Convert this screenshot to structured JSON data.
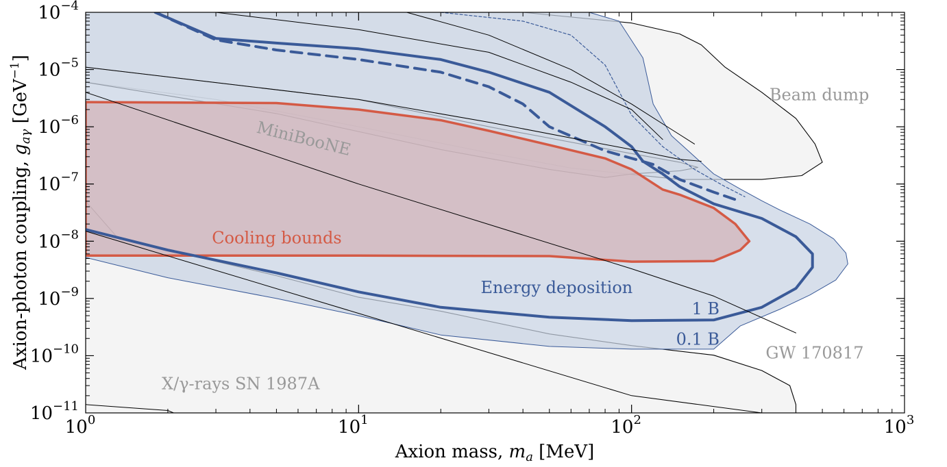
{
  "chart_data": {
    "type": "area",
    "title": "",
    "xlabel": "Axion mass, m_a [MeV]",
    "ylabel": "Axion-photon coupling, g_aγ [GeV⁻¹]",
    "xscale": "log",
    "yscale": "log",
    "xlim": [
      1,
      1000
    ],
    "ylim": [
      1e-11,
      0.0001
    ],
    "x_ticks": [
      {
        "value": 1,
        "base": "10",
        "exp": "0"
      },
      {
        "value": 10,
        "base": "10",
        "exp": "1"
      },
      {
        "value": 100,
        "base": "10",
        "exp": "2"
      },
      {
        "value": 1000,
        "base": "10",
        "exp": "3"
      }
    ],
    "y_ticks": [
      {
        "value": 1e-11,
        "base": "10",
        "exp": "−11"
      },
      {
        "value": 1e-10,
        "base": "10",
        "exp": "−10"
      },
      {
        "value": 1e-09,
        "base": "10",
        "exp": "−9"
      },
      {
        "value": 1e-08,
        "base": "10",
        "exp": "−8"
      },
      {
        "value": 1e-07,
        "base": "10",
        "exp": "−7"
      },
      {
        "value": 1e-06,
        "base": "10",
        "exp": "−6"
      },
      {
        "value": 1e-05,
        "base": "10",
        "exp": "−5"
      },
      {
        "value": 0.0001,
        "base": "10",
        "exp": "−4"
      }
    ],
    "grid": false,
    "colors": {
      "gray_fill": "#f0f0f0",
      "gray_dark_fill": "#c2c2c2",
      "blue_fill": "#c8d2e3",
      "blue_line": "#3a5a98",
      "red_fill": "#d3b3b7",
      "red_line": "#d45a45",
      "label_gray": "#999999"
    },
    "regions": [
      {
        "name": "Beam dump",
        "style": "gray",
        "points": [
          [
            1,
            0.0001
          ],
          [
            40,
            0.0001
          ],
          [
            100,
            6.5e-05
          ],
          [
            150,
            4.2e-05
          ],
          [
            180,
            2.7e-05
          ],
          [
            220,
            1.1e-05
          ],
          [
            300,
            4e-06
          ],
          [
            400,
            1.4e-06
          ],
          [
            470,
            5e-07
          ],
          [
            500,
            2.4e-07
          ],
          [
            420,
            1.4e-07
          ],
          [
            300,
            1.2e-07
          ],
          [
            150,
            1.2e-07
          ],
          [
            60,
            1.9e-07
          ],
          [
            30,
            3.5e-07
          ],
          [
            10,
            1e-06
          ],
          [
            3,
            3e-06
          ],
          [
            1,
            6e-06
          ]
        ]
      },
      {
        "name": "X/γ-rays SN 1987A",
        "style": "gray",
        "points": [
          [
            1,
            5e-08
          ],
          [
            1.3,
            1.2e-08
          ],
          [
            2,
            7e-09
          ],
          [
            5,
            2.5e-09
          ],
          [
            10,
            1.05e-09
          ],
          [
            20,
            6e-10
          ],
          [
            50,
            2.4e-10
          ],
          [
            100,
            1.5e-10
          ],
          [
            200,
            1.02e-10
          ],
          [
            300,
            5.5e-11
          ],
          [
            380,
            3e-11
          ],
          [
            400,
            1.4e-11
          ],
          [
            400,
            1e-11
          ],
          [
            1,
            1e-11
          ]
        ]
      },
      {
        "name": "MiniBooNE",
        "style": "gray",
        "points": [
          [
            1,
            1.1e-05
          ],
          [
            10,
            3e-06
          ],
          [
            30,
            1e-06
          ],
          [
            100,
            3.4e-07
          ],
          [
            150,
            2.4e-07
          ],
          [
            175,
            1.95e-07
          ],
          [
            150,
            1.7e-07
          ],
          [
            100,
            1.5e-07
          ],
          [
            80,
            1.3e-07
          ],
          [
            50,
            1.8e-07
          ],
          [
            20,
            4e-07
          ],
          [
            5,
            1.7e-06
          ],
          [
            1,
            6e-06
          ]
        ]
      },
      {
        "name": "Energy deposition 0.1 B",
        "style": "blue",
        "points": [
          [
            1,
            0.0001
          ],
          [
            70,
            0.0001
          ],
          [
            90,
            7e-05
          ],
          [
            110,
            1.6e-05
          ],
          [
            120,
            2.5e-06
          ],
          [
            140,
            7e-07
          ],
          [
            200,
            1.5e-07
          ],
          [
            250,
            8.2e-08
          ],
          [
            300,
            5.1e-08
          ],
          [
            350,
            3.5e-08
          ],
          [
            450,
            2e-08
          ],
          [
            550,
            1.1e-08
          ],
          [
            610,
            6.2e-09
          ],
          [
            620,
            4e-09
          ],
          [
            560,
            2.1e-09
          ],
          [
            450,
            1.15e-09
          ],
          [
            350,
            6.5e-10
          ],
          [
            250,
            3.3e-10
          ],
          [
            200,
            1.3e-10
          ],
          [
            100,
            1.3e-10
          ],
          [
            50,
            1.45e-10
          ],
          [
            20,
            2.3e-10
          ],
          [
            10,
            5e-10
          ],
          [
            5,
            1e-09
          ],
          [
            2,
            2.3e-09
          ],
          [
            1,
            5.2e-09
          ]
        ]
      },
      {
        "name": "Cooling bounds",
        "style": "red",
        "points": [
          [
            1,
            2.7e-06
          ],
          [
            5,
            2.6e-06
          ],
          [
            10,
            2e-06
          ],
          [
            20,
            1.3e-06
          ],
          [
            30,
            8.5e-07
          ],
          [
            50,
            4.8e-07
          ],
          [
            80,
            2.8e-07
          ],
          [
            100,
            1.8e-07
          ],
          [
            130,
            8e-08
          ],
          [
            150,
            6.5e-08
          ],
          [
            200,
            3.8e-08
          ],
          [
            240,
            2e-08
          ],
          [
            270,
            1e-08
          ],
          [
            250,
            7e-09
          ],
          [
            200,
            4.5e-09
          ],
          [
            100,
            4.4e-09
          ],
          [
            50,
            5.5e-09
          ],
          [
            10,
            5.6e-09
          ],
          [
            1,
            5.6e-09
          ]
        ]
      }
    ],
    "curves": [
      {
        "name": "Energy deposition 1 B",
        "style": "blue-solid-thick",
        "points": [
          [
            1,
            1.6e-08
          ],
          [
            2,
            7e-09
          ],
          [
            5,
            2.8e-09
          ],
          [
            10,
            1.3e-09
          ],
          [
            20,
            7e-10
          ],
          [
            50,
            4.7e-10
          ],
          [
            100,
            4.1e-10
          ],
          [
            200,
            4.2e-10
          ],
          [
            300,
            7e-10
          ],
          [
            400,
            1.5e-09
          ],
          [
            460,
            3.5e-09
          ],
          [
            460,
            6e-09
          ],
          [
            400,
            1.2e-08
          ],
          [
            300,
            2.5e-08
          ],
          [
            200,
            4.5e-08
          ],
          [
            150,
            9e-08
          ],
          [
            130,
            1.5e-07
          ],
          [
            110,
            2.5e-07
          ],
          [
            100,
            4.5e-07
          ],
          [
            80,
            1e-06
          ],
          [
            50,
            4e-06
          ],
          [
            30,
            9e-06
          ],
          [
            20,
            1.5e-05
          ],
          [
            10,
            2.3e-05
          ],
          [
            5,
            2.9e-05
          ],
          [
            3,
            3.5e-05
          ],
          [
            1.8,
            0.0001
          ]
        ]
      },
      {
        "name": "Energy deposition 1 B (dashed)",
        "style": "blue-dashed-thick",
        "points": [
          [
            1.8,
            0.0001
          ],
          [
            3,
            3.3e-05
          ],
          [
            5,
            2.2e-05
          ],
          [
            10,
            1.5e-05
          ],
          [
            20,
            9e-06
          ],
          [
            30,
            5e-06
          ],
          [
            40,
            2.5e-06
          ],
          [
            50,
            1e-06
          ],
          [
            80,
            3.8e-07
          ],
          [
            120,
            2.2e-07
          ],
          [
            150,
            1.2e-07
          ],
          [
            200,
            7.2e-08
          ],
          [
            250,
            5e-08
          ]
        ]
      },
      {
        "name": "Energy deposition 0.1 B (dashed)",
        "style": "blue-dashed-thin",
        "points": [
          [
            20,
            0.0001
          ],
          [
            40,
            7e-05
          ],
          [
            60,
            4e-05
          ],
          [
            80,
            1.2e-05
          ],
          [
            100,
            1.6e-06
          ],
          [
            130,
            4.5e-07
          ],
          [
            170,
            1.8e-07
          ],
          [
            220,
            9e-08
          ],
          [
            260,
            6e-08
          ]
        ]
      },
      {
        "name": "Energy deposition 0.1 B (dashed lower)",
        "style": "blue-dashed-thin",
        "points": [
          [
            50,
            4.6e-10
          ],
          [
            100,
            4e-10
          ],
          [
            200,
            4.1e-10
          ]
        ]
      },
      {
        "name": "",
        "style": "black-thin",
        "points": [
          [
            1,
            4e-06
          ],
          [
            10,
            1e-07
          ],
          [
            100,
            3.3e-09
          ],
          [
            200,
            1.1e-09
          ],
          [
            400,
            2.5e-10
          ]
        ]
      },
      {
        "name": "",
        "style": "black-thin",
        "points": [
          [
            1,
            1.5e-08
          ],
          [
            10,
            5.5e-10
          ],
          [
            100,
            2e-11
          ],
          [
            300,
            1e-11
          ]
        ]
      },
      {
        "name": "",
        "style": "black-thin",
        "points": [
          [
            1,
            1.4e-11
          ],
          [
            2,
            1.1e-11
          ],
          [
            2.1,
            1e-11
          ]
        ]
      },
      {
        "name": "",
        "style": "black-thin",
        "points": [
          [
            1,
            1.1e-05
          ],
          [
            10,
            3e-06
          ],
          [
            30,
            1.2e-06
          ],
          [
            100,
            4e-07
          ],
          [
            150,
            2.7e-07
          ],
          [
            180,
            2.5e-07
          ]
        ]
      },
      {
        "name": "",
        "style": "black-thin",
        "points": [
          [
            15,
            0.0001
          ],
          [
            30,
            4e-05
          ],
          [
            60,
            1e-05
          ],
          [
            100,
            2.5e-06
          ],
          [
            140,
            9e-07
          ],
          [
            170,
            5e-07
          ]
        ]
      },
      {
        "name": "",
        "style": "black-thin",
        "points": [
          [
            3,
            0.0001
          ],
          [
            10,
            5e-05
          ],
          [
            30,
            2e-05
          ],
          [
            60,
            6e-06
          ],
          [
            100,
            2e-06
          ],
          [
            130,
            6e-07
          ]
        ]
      }
    ],
    "annotations": [
      {
        "text": "Beam dump",
        "x": 320,
        "y": 2.9e-06,
        "color": "gray",
        "rotate": 0,
        "anchor": "start"
      },
      {
        "text": "MiniBooNE",
        "x": 4.2,
        "y": 8e-07,
        "color": "gray",
        "rotate": 14,
        "anchor": "start"
      },
      {
        "text": "Cooling bounds",
        "x": 2.9,
        "y": 9.2e-09,
        "color": "red",
        "rotate": 0,
        "anchor": "start"
      },
      {
        "text": "Energy deposition",
        "x": 28,
        "y": 1.25e-09,
        "color": "blue",
        "rotate": 0,
        "anchor": "start"
      },
      {
        "text": "1 B",
        "x": 210,
        "y": 5.3e-10,
        "color": "blue",
        "rotate": 0,
        "anchor": "end"
      },
      {
        "text": "0.1 B",
        "x": 210,
        "y": 1.55e-10,
        "color": "blue",
        "rotate": 0,
        "anchor": "end"
      },
      {
        "text": "GW 170817",
        "x": 310,
        "y": 9e-11,
        "color": "gray",
        "rotate": 0,
        "anchor": "start"
      },
      {
        "text": "X/γ-rays SN 1987A",
        "x": 1.9,
        "y": 2.6e-11,
        "color": "gray",
        "rotate": 0,
        "anchor": "start"
      }
    ]
  }
}
